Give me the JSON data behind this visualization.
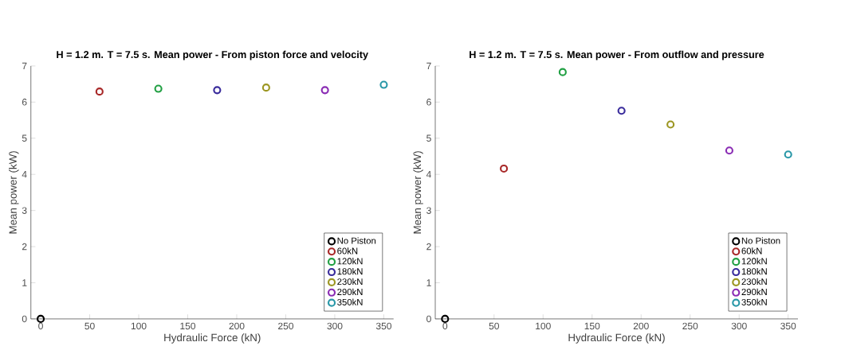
{
  "chart_data": [
    {
      "type": "scatter",
      "title": "H = 1.2 m. T = 7.5 s. Mean power - From piston force and velocity",
      "xlabel": "Hydraulic Force (kN)",
      "ylabel": "Mean power (kW)",
      "xlim": [
        -10,
        360
      ],
      "ylim": [
        0,
        7
      ],
      "xticks": [
        0,
        50,
        100,
        150,
        200,
        250,
        300,
        350
      ],
      "yticks": [
        0,
        1,
        2,
        3,
        4,
        5,
        6,
        7
      ],
      "legend": "bottom right",
      "marker": "circle",
      "series": [
        {
          "name": "No Piston",
          "color": "#000000",
          "x": [
            0
          ],
          "values": [
            0
          ]
        },
        {
          "name": "60kN",
          "color": "#a82828",
          "x": [
            60
          ],
          "values": [
            6.29
          ]
        },
        {
          "name": "120kN",
          "color": "#22a044",
          "x": [
            120
          ],
          "values": [
            6.37
          ]
        },
        {
          "name": "180kN",
          "color": "#3a2c9c",
          "x": [
            180
          ],
          "values": [
            6.33
          ]
        },
        {
          "name": "230kN",
          "color": "#9c9622",
          "x": [
            230
          ],
          "values": [
            6.4
          ]
        },
        {
          "name": "290kN",
          "color": "#8a2cb4",
          "x": [
            290
          ],
          "values": [
            6.33
          ]
        },
        {
          "name": "350kN",
          "color": "#2a98a8",
          "x": [
            350
          ],
          "values": [
            6.48
          ]
        }
      ]
    },
    {
      "type": "scatter",
      "title": "H = 1.2 m. T = 7.5 s. Mean power - From outflow and pressure",
      "xlabel": "Hydraulic Force (kN)",
      "ylabel": "Mean power (kW)",
      "xlim": [
        -10,
        360
      ],
      "ylim": [
        0,
        7
      ],
      "xticks": [
        0,
        50,
        100,
        150,
        200,
        250,
        300,
        350
      ],
      "yticks": [
        0,
        1,
        2,
        3,
        4,
        5,
        6,
        7
      ],
      "legend": "bottom right",
      "marker": "circle",
      "series": [
        {
          "name": "No Piston",
          "color": "#000000",
          "x": [
            0
          ],
          "values": [
            0
          ]
        },
        {
          "name": "60kN",
          "color": "#a82828",
          "x": [
            60
          ],
          "values": [
            4.16
          ]
        },
        {
          "name": "120kN",
          "color": "#22a044",
          "x": [
            120
          ],
          "values": [
            6.83
          ]
        },
        {
          "name": "180kN",
          "color": "#3a2c9c",
          "x": [
            180
          ],
          "values": [
            5.76
          ]
        },
        {
          "name": "230kN",
          "color": "#9c9622",
          "x": [
            230
          ],
          "values": [
            5.38
          ]
        },
        {
          "name": "290kN",
          "color": "#8a2cb4",
          "x": [
            290
          ],
          "values": [
            4.66
          ]
        },
        {
          "name": "350kN",
          "color": "#2a98a8",
          "x": [
            350
          ],
          "values": [
            4.55
          ]
        }
      ]
    }
  ]
}
